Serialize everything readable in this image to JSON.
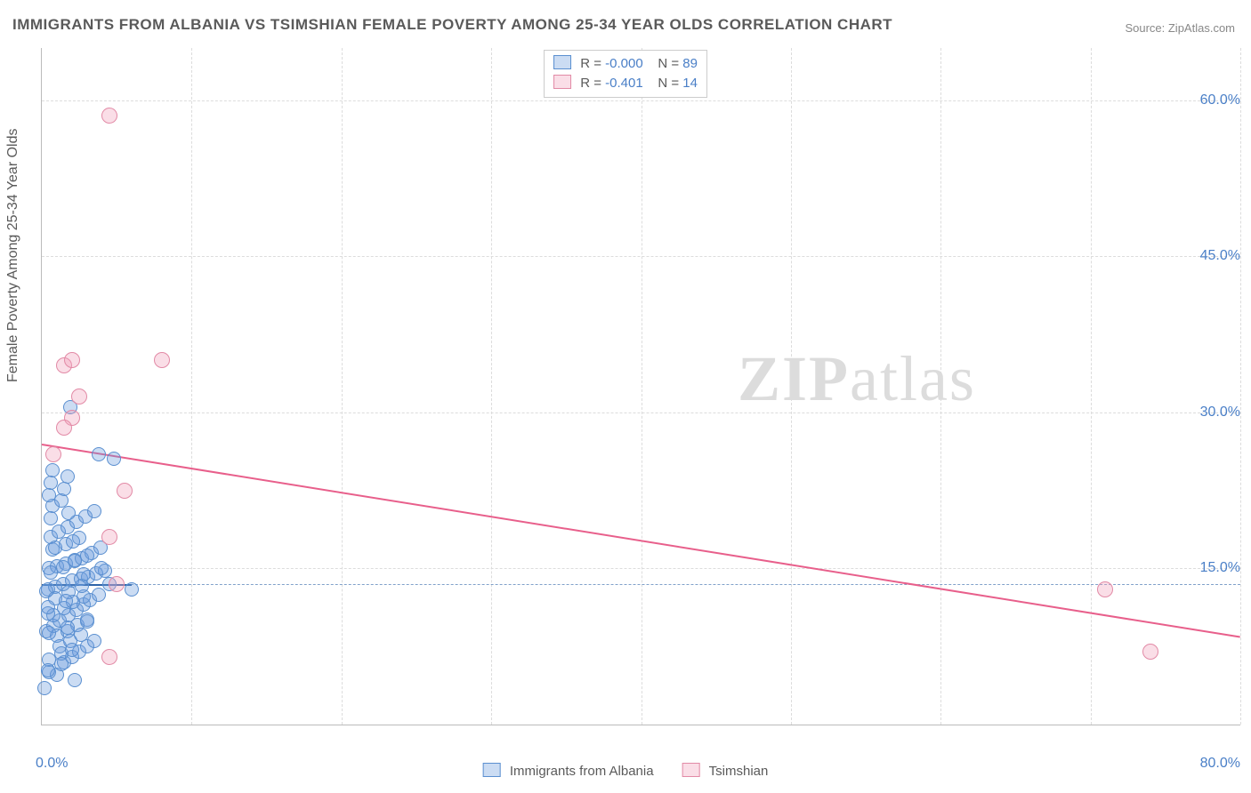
{
  "title": "IMMIGRANTS FROM ALBANIA VS TSIMSHIAN FEMALE POVERTY AMONG 25-34 YEAR OLDS CORRELATION CHART",
  "source_label": "Source: ZipAtlas.com",
  "ylabel": "Female Poverty Among 25-34 Year Olds",
  "watermark_bold": "ZIP",
  "watermark_light": "atlas",
  "chart": {
    "type": "scatter",
    "xlim": [
      0,
      80
    ],
    "ylim": [
      0,
      65
    ],
    "x_ticks": [
      0,
      10,
      20,
      30,
      40,
      50,
      60,
      70,
      80
    ],
    "y_grid": [
      15,
      30,
      45,
      60
    ],
    "y_tick_labels": {
      "15": "15.0%",
      "30": "30.0%",
      "45": "45.0%",
      "60": "60.0%"
    },
    "x_start_label": "0.0%",
    "x_end_label": "80.0%",
    "background_color": "#ffffff",
    "grid_color": "#dcdcdc",
    "axis_color": "#bbbbbb",
    "series": [
      {
        "id": "albania",
        "label": "Immigrants from Albania",
        "fill": "rgba(106,156,220,0.35)",
        "stroke": "#5a8fd0",
        "marker_radius": 8,
        "R": "-0.000",
        "N": "89",
        "trend": {
          "y_at_x0": 13.5,
          "y_at_xmax": 13.45,
          "color": "#2e64a8",
          "dashed": true,
          "short": true
        },
        "points": [
          [
            0.2,
            3.5
          ],
          [
            0.5,
            5.0
          ],
          [
            1.0,
            4.8
          ],
          [
            1.5,
            6.0
          ],
          [
            2.0,
            6.5
          ],
          [
            2.5,
            7.0
          ],
          [
            3.0,
            7.5
          ],
          [
            3.5,
            8.0
          ],
          [
            0.3,
            9.0
          ],
          [
            0.8,
            9.5
          ],
          [
            1.2,
            10.0
          ],
          [
            1.8,
            10.5
          ],
          [
            2.3,
            11.0
          ],
          [
            2.8,
            11.5
          ],
          [
            3.2,
            12.0
          ],
          [
            3.8,
            12.5
          ],
          [
            0.4,
            13.0
          ],
          [
            0.9,
            13.2
          ],
          [
            1.4,
            13.5
          ],
          [
            2.0,
            13.8
          ],
          [
            2.6,
            14.0
          ],
          [
            3.1,
            14.2
          ],
          [
            3.6,
            14.5
          ],
          [
            4.2,
            14.8
          ],
          [
            0.5,
            15.0
          ],
          [
            1.0,
            15.2
          ],
          [
            1.6,
            15.5
          ],
          [
            2.2,
            15.8
          ],
          [
            2.7,
            16.0
          ],
          [
            3.3,
            16.5
          ],
          [
            3.9,
            17.0
          ],
          [
            4.5,
            13.5
          ],
          [
            0.6,
            18.0
          ],
          [
            1.1,
            18.5
          ],
          [
            1.7,
            19.0
          ],
          [
            2.3,
            19.5
          ],
          [
            2.9,
            20.0
          ],
          [
            3.5,
            20.5
          ],
          [
            0.7,
            21.0
          ],
          [
            1.3,
            21.5
          ],
          [
            0.8,
            10.5
          ],
          [
            1.5,
            11.2
          ],
          [
            2.1,
            11.8
          ],
          [
            2.8,
            12.3
          ],
          [
            0.3,
            12.8
          ],
          [
            1.0,
            8.5
          ],
          [
            1.7,
            9.0
          ],
          [
            2.4,
            9.6
          ],
          [
            3.0,
            10.1
          ],
          [
            0.4,
            10.7
          ],
          [
            1.2,
            7.5
          ],
          [
            1.9,
            8.0
          ],
          [
            2.6,
            8.6
          ],
          [
            0.5,
            6.2
          ],
          [
            1.3,
            6.8
          ],
          [
            2.0,
            7.2
          ],
          [
            0.6,
            14.6
          ],
          [
            1.4,
            15.1
          ],
          [
            2.2,
            15.7
          ],
          [
            3.0,
            16.2
          ],
          [
            0.7,
            16.8
          ],
          [
            1.6,
            17.3
          ],
          [
            2.5,
            17.9
          ],
          [
            0.9,
            12.1
          ],
          [
            1.8,
            12.7
          ],
          [
            2.7,
            13.3
          ],
          [
            0.4,
            5.2
          ],
          [
            1.3,
            5.8
          ],
          [
            2.2,
            4.3
          ],
          [
            0.5,
            22.0
          ],
          [
            1.5,
            22.6
          ],
          [
            0.6,
            23.2
          ],
          [
            1.7,
            23.8
          ],
          [
            0.7,
            24.4
          ],
          [
            1.9,
            30.5
          ],
          [
            3.8,
            26.0
          ],
          [
            4.8,
            25.5
          ],
          [
            0.6,
            19.8
          ],
          [
            1.8,
            20.3
          ],
          [
            0.9,
            17.0
          ],
          [
            2.1,
            17.6
          ],
          [
            0.4,
            11.3
          ],
          [
            1.6,
            11.9
          ],
          [
            2.8,
            14.4
          ],
          [
            4.0,
            15.0
          ],
          [
            0.5,
            8.8
          ],
          [
            1.7,
            9.3
          ],
          [
            3.0,
            9.9
          ],
          [
            6.0,
            13.0
          ]
        ]
      },
      {
        "id": "tsimshian",
        "label": "Tsimshian",
        "fill": "rgba(240,160,185,0.35)",
        "stroke": "#e28aa6",
        "marker_radius": 9,
        "R": "-0.401",
        "N": "14",
        "trend": {
          "y_at_x0": 27.0,
          "y_at_xmax": 8.5,
          "color": "#e85f8b",
          "dashed": false,
          "short": false
        },
        "points": [
          [
            4.5,
            58.5
          ],
          [
            1.5,
            34.5
          ],
          [
            2.0,
            35.0
          ],
          [
            2.5,
            31.5
          ],
          [
            2.0,
            29.5
          ],
          [
            1.5,
            28.5
          ],
          [
            8.0,
            35.0
          ],
          [
            5.5,
            22.5
          ],
          [
            4.5,
            18.0
          ],
          [
            5.0,
            13.5
          ],
          [
            4.5,
            6.5
          ],
          [
            71.0,
            13.0
          ],
          [
            74.0,
            7.0
          ],
          [
            0.8,
            26.0
          ]
        ]
      }
    ]
  },
  "legend_top": {
    "r_label": "R =",
    "n_label": "N ="
  }
}
